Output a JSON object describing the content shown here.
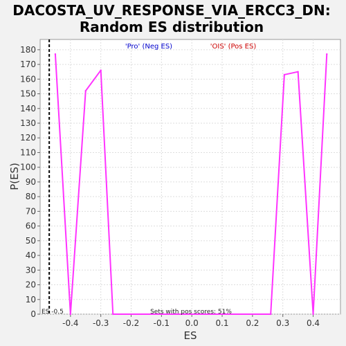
{
  "chart_data": {
    "type": "line",
    "title_line1": "DACOSTA_UV_RESPONSE_VIA_ERCC3_DN:",
    "title_line2": "Random ES distribution",
    "xlabel": "ES",
    "ylabel": "P(ES)",
    "xlim": [
      -0.5,
      0.49
    ],
    "ylim": [
      0,
      187
    ],
    "xticks": [
      -0.4,
      -0.3,
      -0.2,
      -0.1,
      0.0,
      0.1,
      0.2,
      0.3,
      0.4
    ],
    "xtick_labels": [
      "-0.4",
      "-0.3",
      "-0.2",
      "-0.1",
      "0.0",
      "0.1",
      "0.2",
      "0.3",
      "0.4"
    ],
    "yticks": [
      0,
      10,
      20,
      30,
      40,
      50,
      60,
      70,
      80,
      90,
      100,
      110,
      120,
      130,
      140,
      150,
      160,
      170,
      180
    ],
    "ytick_labels": [
      "0",
      "10",
      "20",
      "30",
      "40",
      "50",
      "60",
      "70",
      "80",
      "90",
      "100",
      "110",
      "120",
      "130",
      "140",
      "150",
      "160",
      "170",
      "180"
    ],
    "grid": true,
    "series": [
      {
        "color": "#ff33ff",
        "x": [
          -0.45,
          -0.4,
          -0.35,
          -0.3,
          -0.26,
          0.26,
          0.305,
          0.35,
          0.4,
          0.445
        ],
        "y": [
          177,
          0,
          152,
          166,
          0,
          0,
          163,
          165,
          0,
          177
        ]
      }
    ],
    "vline": {
      "x": -0.47,
      "style": "dashed",
      "color": "#000000"
    },
    "legend_neg": {
      "text": "'Pro' (Neg ES)",
      "color": "#0000cc"
    },
    "legend_pos": {
      "text": "'OIS' (Pos ES)",
      "color": "#cc0000"
    },
    "annotation_es": "ES -0.5",
    "annotation_bottom": "Sets with pos scores: 51%"
  }
}
